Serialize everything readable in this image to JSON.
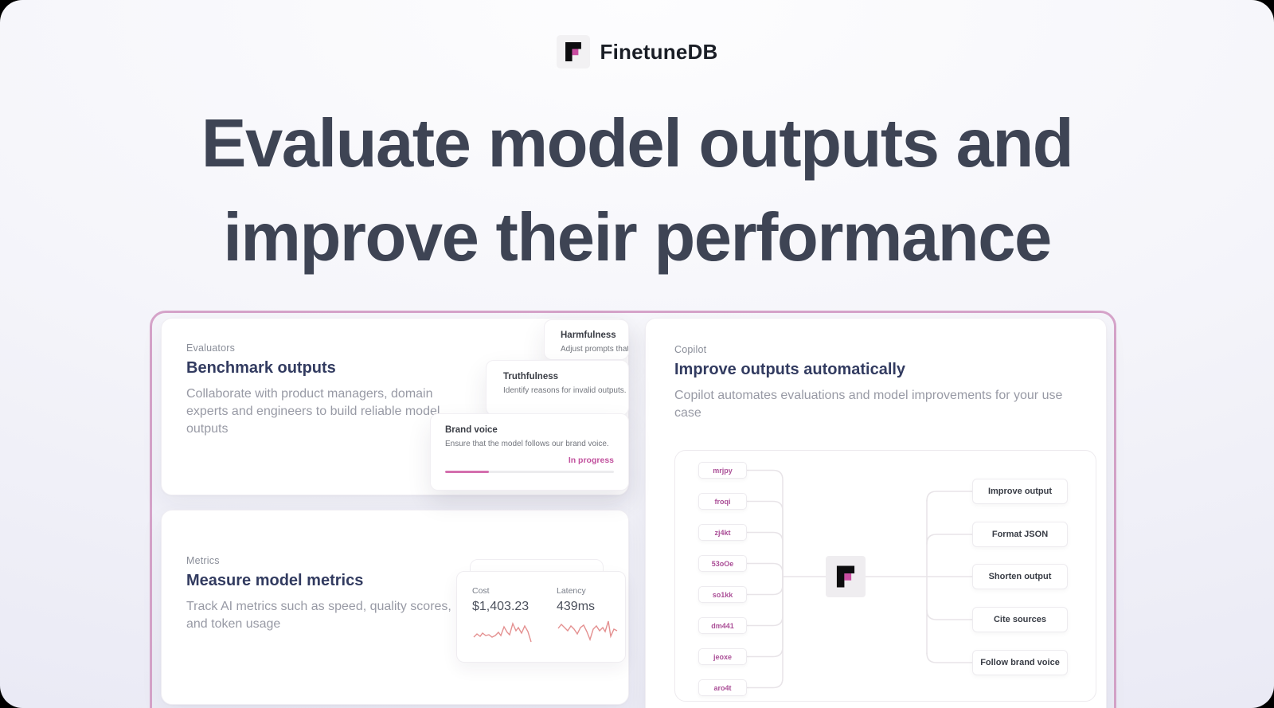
{
  "brand": {
    "name": "FinetuneDB"
  },
  "hero": {
    "line1": "Evaluate model outputs and",
    "line2": "improve their performance"
  },
  "colors": {
    "accent_pink": "#c2529e",
    "container_border_pink": "#d5a3c9",
    "heading_navy": "#323b60",
    "sparkline_red": "#e49090",
    "logo_black": "#0d0d0f",
    "logo_pink": "#c94da1"
  },
  "evaluators": {
    "label": "Evaluators",
    "title": "Benchmark outputs",
    "description": "Collaborate with product managers, domain experts and engineers to build reliable model outputs",
    "floating_cards": {
      "harmfulness": {
        "title": "Harmfulness",
        "description": "Adjust prompts that re"
      },
      "truthfulness": {
        "title": "Truthfulness",
        "description": "Identify reasons for invalid outputs."
      },
      "brand_voice": {
        "title": "Brand voice",
        "description": "Ensure that the model follows our brand voice.",
        "status": "In progress",
        "progress_percent": 26
      }
    }
  },
  "metrics": {
    "label": "Metrics",
    "title": "Measure model metrics",
    "description": "Track AI metrics such as speed, quality scores, and token usage",
    "stats": [
      {
        "label": "Cost",
        "value": "$1,403.23"
      },
      {
        "label": "Latency",
        "value": "439ms"
      }
    ]
  },
  "copilot": {
    "label": "Copilot",
    "title": "Improve outputs automatically",
    "description": "Copilot automates evaluations and model improvements for your use case",
    "dataset_nodes": [
      "mrjpy",
      "froqi",
      "zj4kt",
      "53oOe",
      "so1kk",
      "dm441",
      "jeoxe",
      "aro4t"
    ],
    "actions": [
      "Improve output",
      "Format JSON",
      "Shorten output",
      "Cite sources",
      "Follow brand voice"
    ]
  }
}
